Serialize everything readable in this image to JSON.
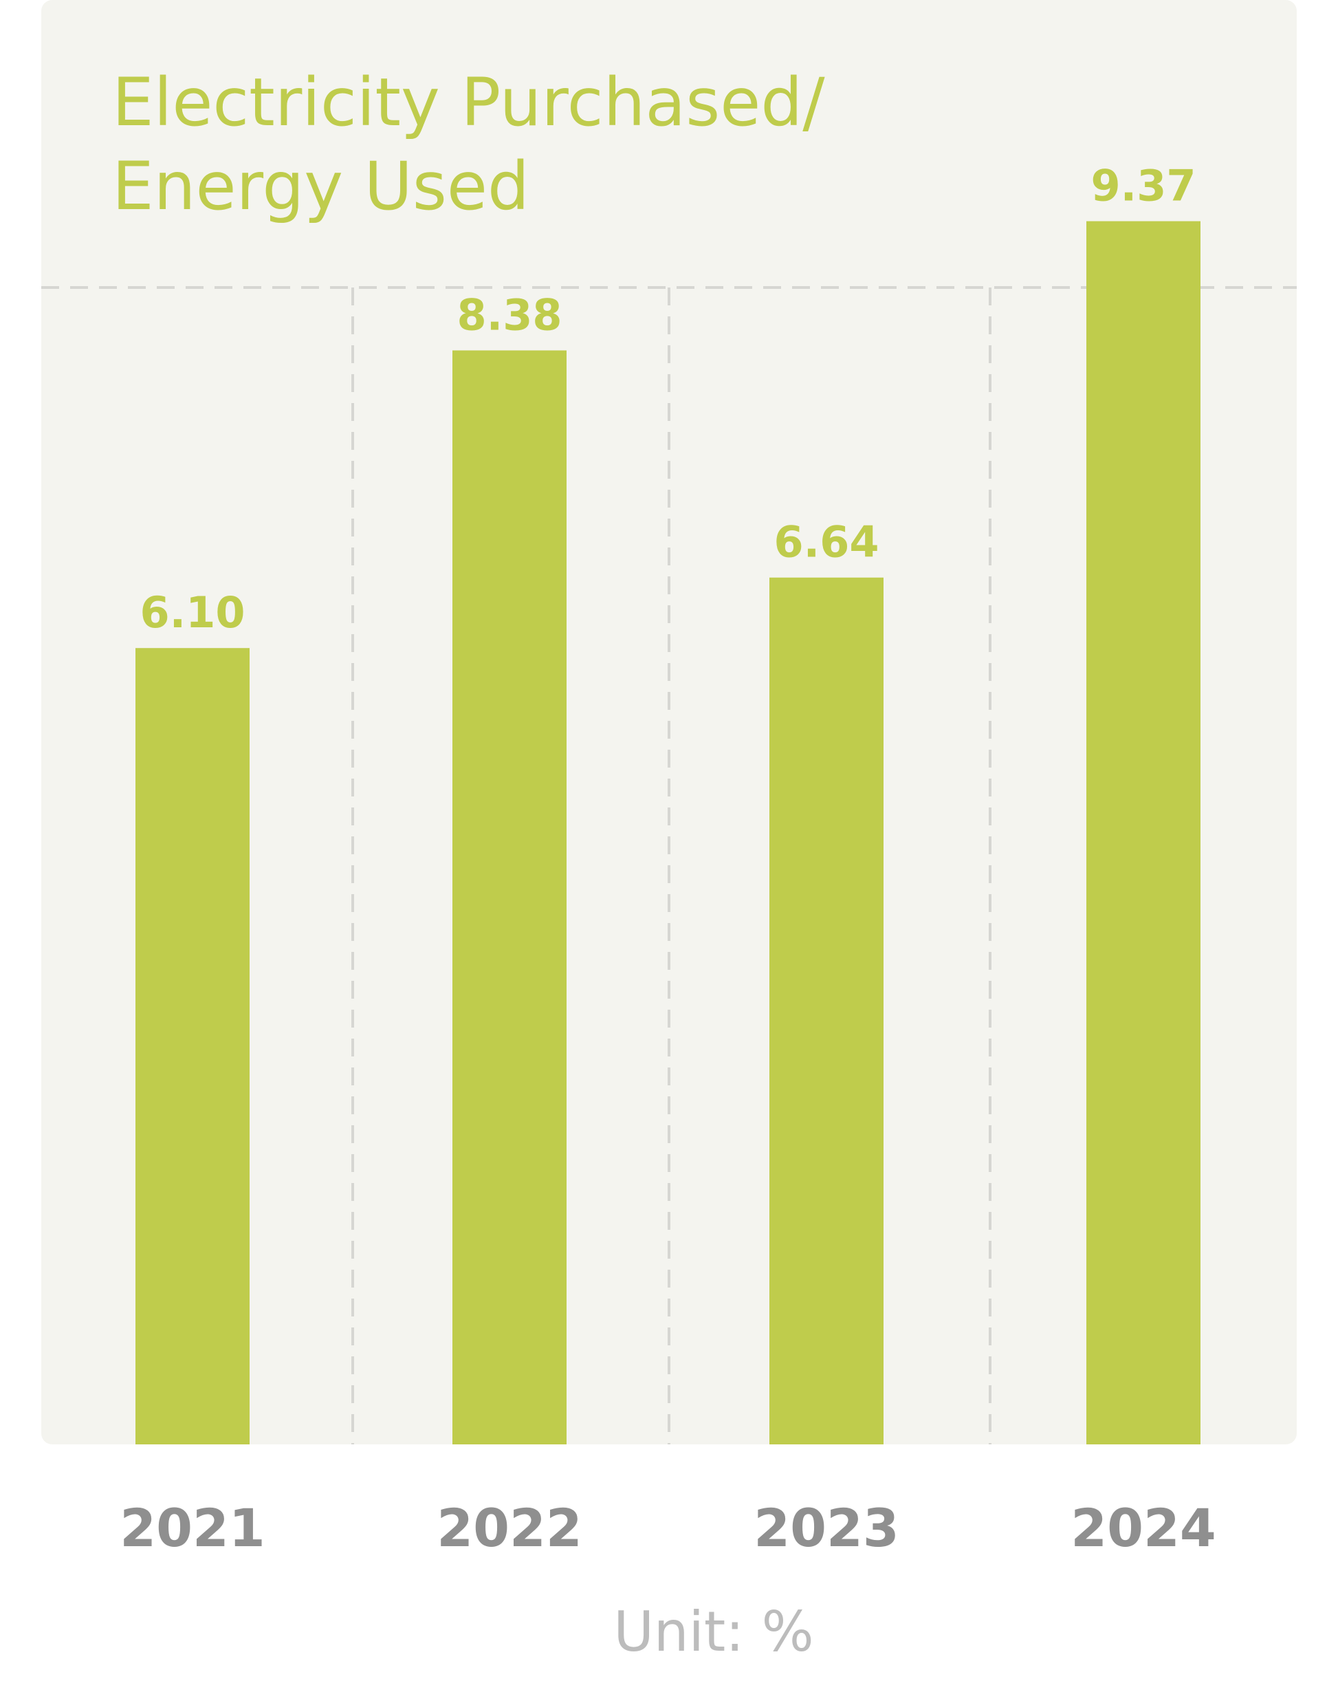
{
  "colors": {
    "bar": "#bfcc4c",
    "title": "#bfcc4c",
    "value_label": "#bfcc4c",
    "tick_label": "#8f8f8f",
    "unit_label": "#bcbcbc",
    "card_background": "#f4f4ef",
    "grid": "#d6d6d2"
  },
  "chart_data": {
    "type": "bar",
    "title_lines": [
      "Electricity Purchased/",
      "Energy Used"
    ],
    "categories": [
      "2021",
      "2022",
      "2023",
      "2024"
    ],
    "values": [
      6.1,
      8.38,
      6.64,
      9.37
    ],
    "value_labels": [
      "6.10",
      "8.38",
      "6.64",
      "9.37"
    ],
    "unit_label": "Unit: %",
    "ylim": [
      0,
      10.5
    ],
    "grid": "vertical dashed separators between categories",
    "legend": "none"
  }
}
